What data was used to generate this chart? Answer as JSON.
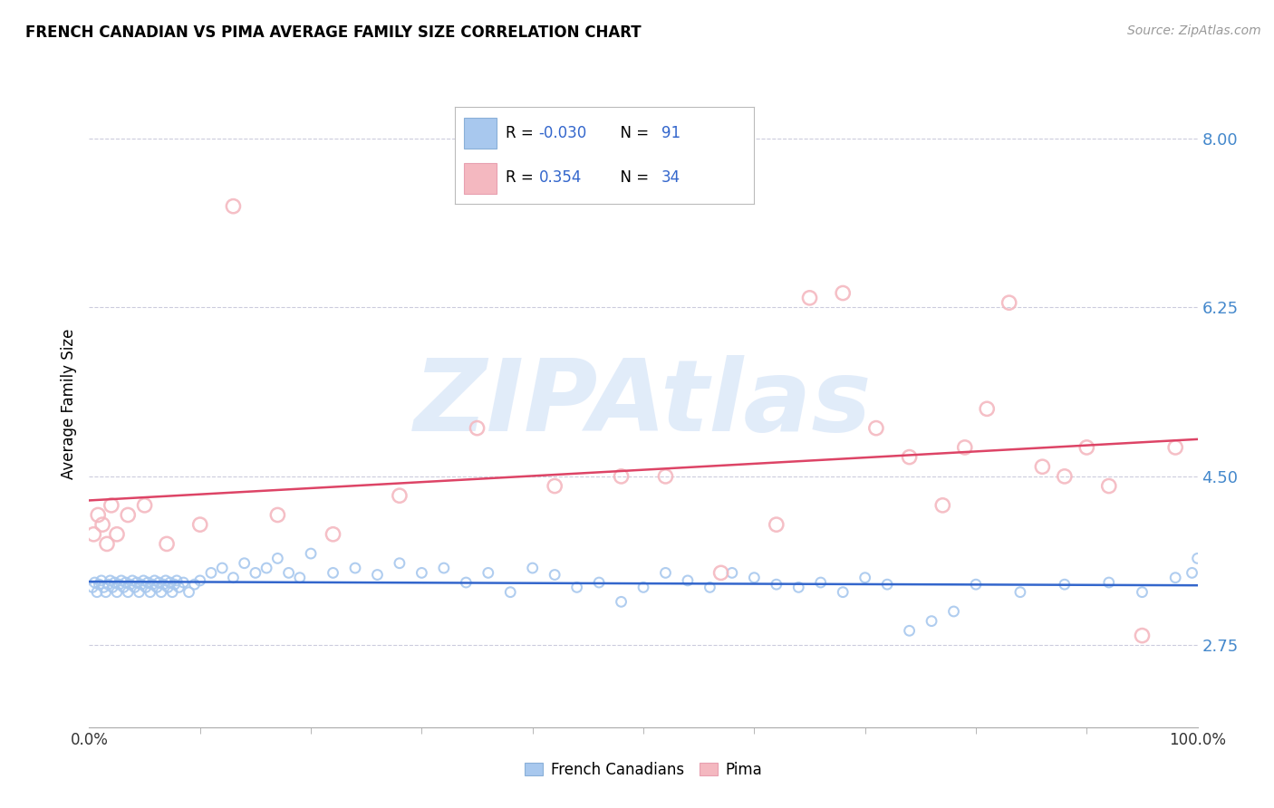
{
  "title": "FRENCH CANADIAN VS PIMA AVERAGE FAMILY SIZE CORRELATION CHART",
  "source": "Source: ZipAtlas.com",
  "ylabel": "Average Family Size",
  "yticks": [
    2.75,
    4.5,
    6.25,
    8.0
  ],
  "ymin": 1.9,
  "ymax": 8.6,
  "xmin": 0.0,
  "xmax": 100.0,
  "watermark": "ZIPAtlas",
  "blue_R": -0.03,
  "blue_N": 91,
  "pink_R": 0.354,
  "pink_N": 34,
  "blue_marker_color": "#a8c8ee",
  "pink_marker_color": "#f4b8c0",
  "blue_line_color": "#3366cc",
  "pink_line_color": "#dd4466",
  "blue_scatter_x": [
    0.3,
    0.5,
    0.7,
    0.9,
    1.1,
    1.3,
    1.5,
    1.7,
    1.9,
    2.1,
    2.3,
    2.5,
    2.7,
    2.9,
    3.1,
    3.3,
    3.5,
    3.7,
    3.9,
    4.1,
    4.3,
    4.5,
    4.7,
    4.9,
    5.1,
    5.3,
    5.5,
    5.7,
    5.9,
    6.1,
    6.3,
    6.5,
    6.7,
    6.9,
    7.1,
    7.3,
    7.5,
    7.7,
    7.9,
    8.1,
    8.5,
    9.0,
    9.5,
    10.0,
    11.0,
    12.0,
    13.0,
    14.0,
    15.0,
    16.0,
    17.0,
    18.0,
    19.0,
    20.0,
    22.0,
    24.0,
    26.0,
    28.0,
    30.0,
    32.0,
    34.0,
    36.0,
    38.0,
    40.0,
    42.0,
    44.0,
    46.0,
    48.0,
    50.0,
    52.0,
    54.0,
    56.0,
    58.0,
    60.0,
    62.0,
    64.0,
    66.0,
    68.0,
    70.0,
    72.0,
    74.0,
    76.0,
    78.0,
    80.0,
    84.0,
    88.0,
    92.0,
    95.0,
    98.0,
    99.5,
    100.0
  ],
  "blue_scatter_y": [
    3.35,
    3.4,
    3.3,
    3.38,
    3.42,
    3.35,
    3.3,
    3.38,
    3.42,
    3.35,
    3.4,
    3.3,
    3.38,
    3.42,
    3.35,
    3.4,
    3.3,
    3.38,
    3.42,
    3.35,
    3.4,
    3.3,
    3.38,
    3.42,
    3.35,
    3.4,
    3.3,
    3.38,
    3.42,
    3.35,
    3.4,
    3.3,
    3.38,
    3.42,
    3.35,
    3.4,
    3.3,
    3.38,
    3.42,
    3.35,
    3.4,
    3.3,
    3.38,
    3.42,
    3.5,
    3.55,
    3.45,
    3.6,
    3.5,
    3.55,
    3.65,
    3.5,
    3.45,
    3.7,
    3.5,
    3.55,
    3.48,
    3.6,
    3.5,
    3.55,
    3.4,
    3.5,
    3.3,
    3.55,
    3.48,
    3.35,
    3.4,
    3.2,
    3.35,
    3.5,
    3.42,
    3.35,
    3.5,
    3.45,
    3.38,
    3.35,
    3.4,
    3.3,
    3.45,
    3.38,
    2.9,
    3.0,
    3.1,
    3.38,
    3.3,
    3.38,
    3.4,
    3.3,
    3.45,
    3.5,
    3.65
  ],
  "pink_scatter_x": [
    0.4,
    0.8,
    1.2,
    1.6,
    2.0,
    2.5,
    3.5,
    5.0,
    7.0,
    10.0,
    13.0,
    17.0,
    22.0,
    28.0,
    35.0,
    42.0,
    48.0,
    52.0,
    57.0,
    62.0,
    65.0,
    68.0,
    71.0,
    74.0,
    77.0,
    79.0,
    81.0,
    83.0,
    86.0,
    88.0,
    90.0,
    92.0,
    95.0,
    98.0
  ],
  "pink_scatter_y": [
    3.9,
    4.1,
    4.0,
    3.8,
    4.2,
    3.9,
    4.1,
    4.2,
    3.8,
    4.0,
    7.3,
    4.1,
    3.9,
    4.3,
    5.0,
    4.4,
    4.5,
    4.5,
    3.5,
    4.0,
    6.35,
    6.4,
    5.0,
    4.7,
    4.2,
    4.8,
    5.2,
    6.3,
    4.6,
    4.5,
    4.8,
    4.4,
    2.85,
    4.8
  ]
}
